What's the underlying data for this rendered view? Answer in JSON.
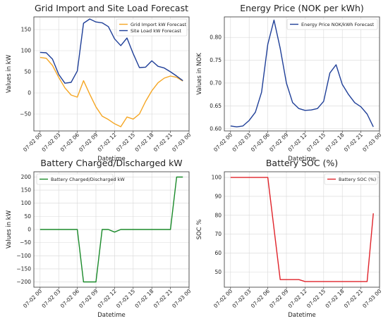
{
  "chart_data": [
    {
      "type": "line",
      "title": "Grid Import and Site Load Forecast",
      "xlabel": "Datetime",
      "ylabel": "Values in kW",
      "x": [
        "07-02 00",
        "07-02 01",
        "07-02 02",
        "07-02 03",
        "07-02 04",
        "07-02 05",
        "07-02 06",
        "07-02 07",
        "07-02 08",
        "07-02 09",
        "07-02 10",
        "07-02 11",
        "07-02 12",
        "07-02 13",
        "07-02 14",
        "07-02 15",
        "07-02 16",
        "07-02 17",
        "07-02 18",
        "07-02 19",
        "07-02 20",
        "07-02 21",
        "07-02 22",
        "07-02 23"
      ],
      "x_ticks": [
        "07-02 00",
        "07-02 03",
        "07-02 06",
        "07-02 09",
        "07-02 12",
        "07-02 15",
        "07-02 18",
        "07-02 21",
        "07-03 00"
      ],
      "ylim": [
        -90,
        180
      ],
      "y_ticks": [
        "150",
        "100",
        "50",
        "0",
        "−50"
      ],
      "y_tick_values": [
        150,
        100,
        50,
        0,
        -50
      ],
      "grid": true,
      "legend": "top-right",
      "series": [
        {
          "name": "Grid Import kW Forecast",
          "color": "#f5a623",
          "values": [
            84,
            82,
            65,
            37,
            12,
            -5,
            -10,
            29,
            -3,
            -33,
            -55,
            -63,
            -73,
            -80,
            -57,
            -62,
            -50,
            -20,
            5,
            24,
            35,
            40,
            37,
            28
          ]
        },
        {
          "name": "Site Load kW Forecast",
          "color": "#1f3f98",
          "values": [
            96,
            95,
            80,
            44,
            23,
            25,
            52,
            165,
            175,
            168,
            166,
            157,
            128,
            112,
            130,
            93,
            60,
            61,
            76,
            63,
            59,
            50,
            40,
            29
          ]
        }
      ]
    },
    {
      "type": "line",
      "title": "Energy Price (NOK per kWh)",
      "xlabel": "Datetime",
      "ylabel": "Values in NOK",
      "x": [
        "07-02 00",
        "07-02 01",
        "07-02 02",
        "07-02 03",
        "07-02 04",
        "07-02 05",
        "07-02 06",
        "07-02 07",
        "07-02 08",
        "07-02 09",
        "07-02 10",
        "07-02 11",
        "07-02 12",
        "07-02 13",
        "07-02 14",
        "07-02 15",
        "07-02 16",
        "07-02 17",
        "07-02 18",
        "07-02 19",
        "07-02 20",
        "07-02 21",
        "07-02 22",
        "07-02 23"
      ],
      "x_ticks": [
        "07-02 00",
        "07-02 03",
        "07-02 06",
        "07-02 09",
        "07-02 12",
        "07-02 15",
        "07-02 18",
        "07-02 21",
        "07-03 00"
      ],
      "ylim": [
        0.595,
        0.845
      ],
      "y_ticks": [
        "0.80",
        "0.75",
        "0.70",
        "0.65",
        "0.60"
      ],
      "y_tick_values": [
        0.8,
        0.75,
        0.7,
        0.65,
        0.6
      ],
      "grid": true,
      "legend": "top-right",
      "series": [
        {
          "name": "Energy Price NOK/kWh Forecast",
          "color": "#1f3f98",
          "values": [
            0.606,
            0.604,
            0.606,
            0.618,
            0.636,
            0.68,
            0.785,
            0.838,
            0.776,
            0.7,
            0.657,
            0.644,
            0.64,
            0.641,
            0.644,
            0.66,
            0.722,
            0.74,
            0.697,
            0.675,
            0.657,
            0.648,
            0.632,
            0.604
          ]
        }
      ]
    },
    {
      "type": "line",
      "title": "Battery Charged/Discharged kW",
      "xlabel": "Datetime",
      "ylabel": "Values in kW",
      "x": [
        "07-02 00",
        "07-02 01",
        "07-02 02",
        "07-02 03",
        "07-02 04",
        "07-02 05",
        "07-02 06",
        "07-02 07",
        "07-02 08",
        "07-02 09",
        "07-02 10",
        "07-02 11",
        "07-02 12",
        "07-02 13",
        "07-02 14",
        "07-02 15",
        "07-02 16",
        "07-02 17",
        "07-02 18",
        "07-02 19",
        "07-02 20",
        "07-02 21",
        "07-02 22",
        "07-02 23"
      ],
      "x_ticks": [
        "07-02 00",
        "07-02 03",
        "07-02 06",
        "07-02 09",
        "07-02 12",
        "07-02 15",
        "07-02 18",
        "07-02 21",
        "07-03 00"
      ],
      "ylim": [
        -220,
        220
      ],
      "y_ticks": [
        "200",
        "150",
        "100",
        "50",
        "0",
        "−50",
        "−100",
        "−150",
        "−200"
      ],
      "y_tick_values": [
        200,
        150,
        100,
        50,
        0,
        -50,
        -100,
        -150,
        -200
      ],
      "grid": true,
      "legend": "top-left",
      "series": [
        {
          "name": "Battery Charged/Discharged kW",
          "color": "#1a8a2a",
          "values": [
            0,
            0,
            0,
            0,
            0,
            0,
            0,
            -200,
            -200,
            -200,
            0,
            0,
            -10,
            0,
            0,
            0,
            0,
            0,
            0,
            0,
            0,
            0,
            200,
            200
          ]
        }
      ]
    },
    {
      "type": "line",
      "title": "Battery SOC (%)",
      "xlabel": "Datetime",
      "ylabel": "SOC %",
      "x": [
        "07-02 00",
        "07-02 01",
        "07-02 02",
        "07-02 03",
        "07-02 04",
        "07-02 05",
        "07-02 06",
        "07-02 07",
        "07-02 08",
        "07-02 09",
        "07-02 10",
        "07-02 11",
        "07-02 12",
        "07-02 13",
        "07-02 14",
        "07-02 15",
        "07-02 16",
        "07-02 17",
        "07-02 18",
        "07-02 19",
        "07-02 20",
        "07-02 21",
        "07-02 22",
        "07-02 23"
      ],
      "x_ticks": [
        "07-02 00",
        "07-02 03",
        "07-02 06",
        "07-02 09",
        "07-02 12",
        "07-02 15",
        "07-02 18",
        "07-02 21",
        "07-03 00"
      ],
      "ylim": [
        42,
        103
      ],
      "y_ticks": [
        "100",
        "90",
        "80",
        "70",
        "60",
        "50"
      ],
      "y_tick_values": [
        100,
        90,
        80,
        70,
        60,
        50
      ],
      "grid": true,
      "legend": "top-right",
      "series": [
        {
          "name": "Battery SOC (%)",
          "color": "#e0232a",
          "values": [
            100,
            100,
            100,
            100,
            100,
            100,
            100,
            73,
            46,
            46,
            46,
            46,
            45,
            45,
            45,
            45,
            45,
            45,
            45,
            45,
            45,
            45,
            45,
            81
          ]
        }
      ]
    }
  ]
}
